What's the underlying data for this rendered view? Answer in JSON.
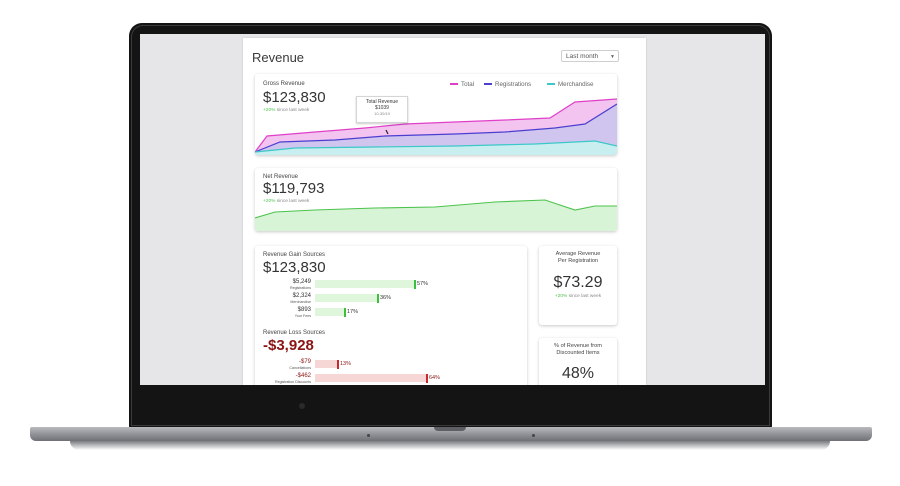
{
  "page": {
    "title": "Revenue",
    "range": "Last month"
  },
  "gross": {
    "label": "Gross Revenue",
    "value": "$123,830",
    "delta_up": "+20%",
    "delta_text": " since last week",
    "legend": [
      {
        "name": "Total",
        "color": "#e040c8"
      },
      {
        "name": "Registrations",
        "color": "#4b3fd0"
      },
      {
        "name": "Merchandise",
        "color": "#3cc8c8"
      }
    ],
    "tooltip": {
      "title": "Total Revenue",
      "value": "$1039",
      "date": "10-30/19"
    }
  },
  "net": {
    "label": "Net Revenue",
    "value": "$119,793",
    "delta_up": "+20%",
    "delta_text": " since last week"
  },
  "gain": {
    "label": "Revenue Gain Sources",
    "value": "$123,830",
    "rows": [
      {
        "amount": "$5,249",
        "name": "Registrations",
        "pct": "57%",
        "fill": 0.57
      },
      {
        "amount": "$2,324",
        "name": "Merchandise",
        "pct": "36%",
        "fill": 0.36
      },
      {
        "amount": "$893",
        "name": "Your Fees",
        "pct": "17%",
        "fill": 0.17
      }
    ]
  },
  "loss": {
    "label": "Revenue Loss Sources",
    "value": "-$3,928",
    "rows": [
      {
        "amount": "-$79",
        "name": "Cancellations",
        "pct": "13%",
        "fill": 0.13
      },
      {
        "amount": "-$462",
        "name": "Registration Discounts",
        "pct": "64%",
        "fill": 0.64
      }
    ]
  },
  "avg": {
    "title_line1": "Average Revenue",
    "title_line2": "Per Registration",
    "value": "$73.29",
    "delta_up": "+20%",
    "delta_text": " since last week"
  },
  "discount": {
    "title_line1": "% of Revenue from",
    "title_line2": "Discounted Items",
    "value": "48%"
  },
  "colors": {
    "gain_bar": "#dff5dc",
    "gain_tick": "#3cbf3c",
    "loss_bar": "#f7d6d6",
    "loss_tick": "#c62b2b",
    "loss_value": "#8b1414"
  }
}
